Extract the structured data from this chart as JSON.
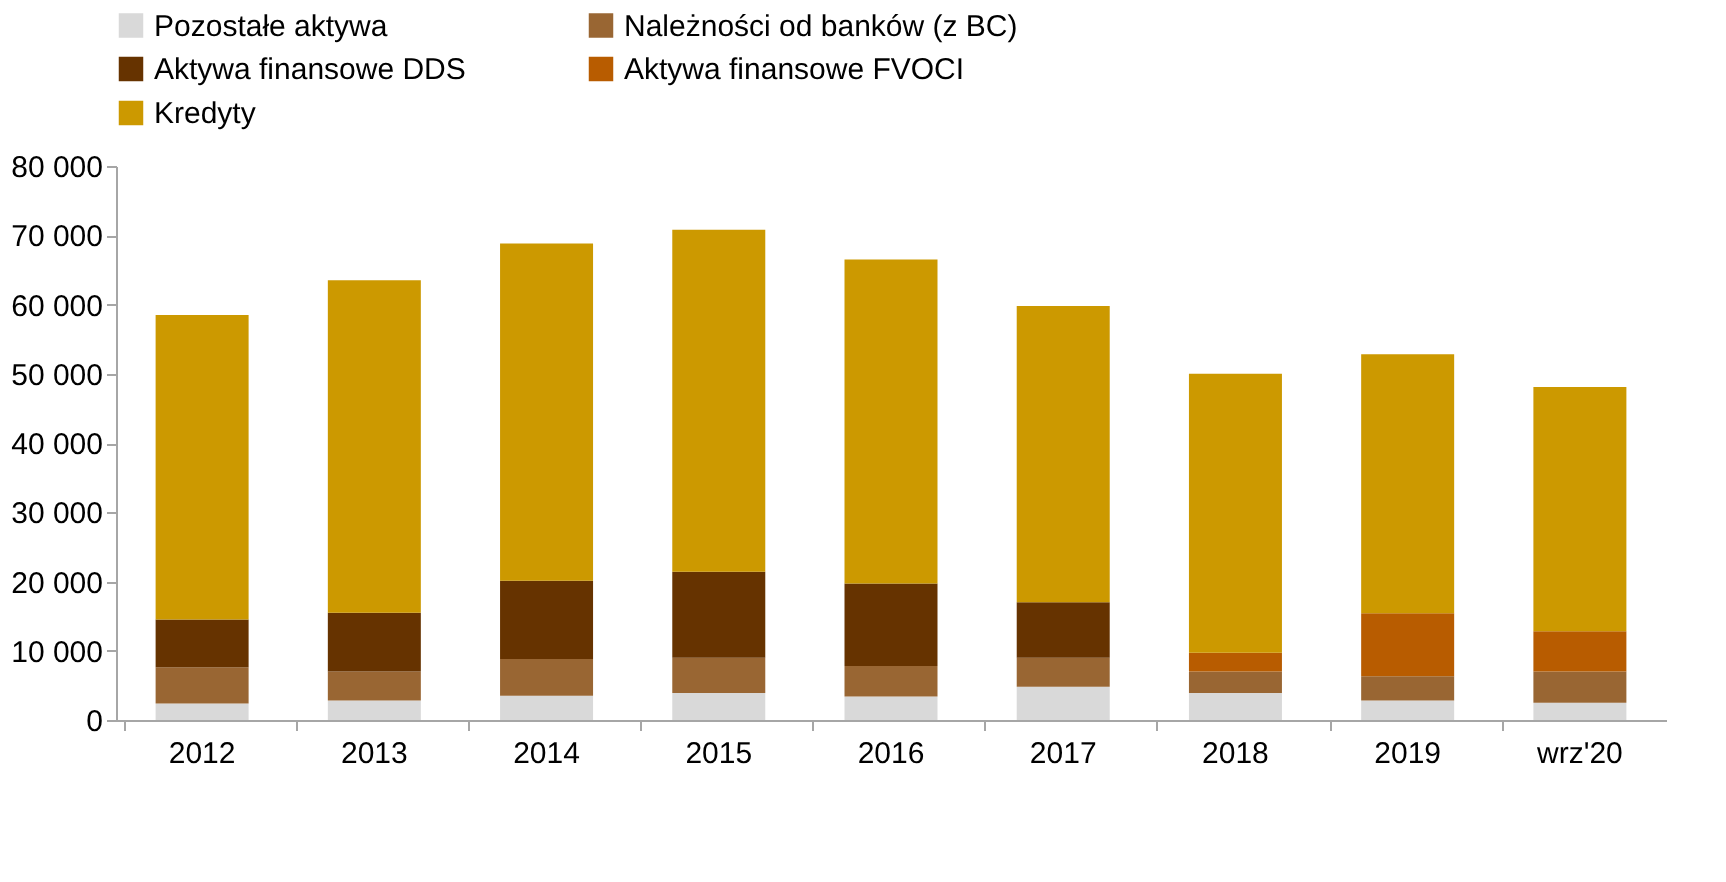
{
  "chart_data": {
    "type": "bar",
    "stacked": true,
    "legend": "top",
    "categories": [
      "2012",
      "2013",
      "2014",
      "2015",
      "2016",
      "2017",
      "2018",
      "2019",
      "wrz'20"
    ],
    "series": [
      {
        "name": "Pozostałe aktywa",
        "color": "#d9d9d9",
        "values": [
          2400,
          2800,
          3500,
          3900,
          3400,
          4800,
          3900,
          2800,
          2500
        ]
      },
      {
        "name": "Należności od banków (z BC)",
        "color": "#996633",
        "values": [
          5200,
          4200,
          5300,
          5100,
          4400,
          4200,
          3100,
          3500,
          4500
        ]
      },
      {
        "name": "Aktywa finansowe DDS",
        "color": "#663300",
        "values": [
          6900,
          8500,
          11300,
          12400,
          11900,
          8000,
          null,
          null,
          null
        ]
      },
      {
        "name": "Aktywa finansowe FVOCI",
        "color": "#b85c00",
        "values": [
          null,
          null,
          null,
          null,
          null,
          null,
          2700,
          9100,
          5800
        ]
      },
      {
        "name": "Kredyty",
        "color": "#cc9900",
        "values": [
          44000,
          48000,
          48700,
          49400,
          46800,
          42800,
          40300,
          37400,
          35300
        ]
      }
    ],
    "ylim": [
      0,
      80000
    ],
    "yticks": [
      0,
      {
        "value": 10000,
        "label": "10 000"
      },
      {
        "value": 20000,
        "label": "20 000"
      },
      {
        "value": 30000,
        "label": "30 000"
      },
      {
        "value": 40000,
        "label": "40 000"
      },
      {
        "value": 50000,
        "label": "50 000"
      },
      {
        "value": 60000,
        "label": "60 000"
      },
      {
        "value": 70000,
        "label": "70 000"
      },
      {
        "value": 80000,
        "label": "80 000"
      }
    ]
  }
}
